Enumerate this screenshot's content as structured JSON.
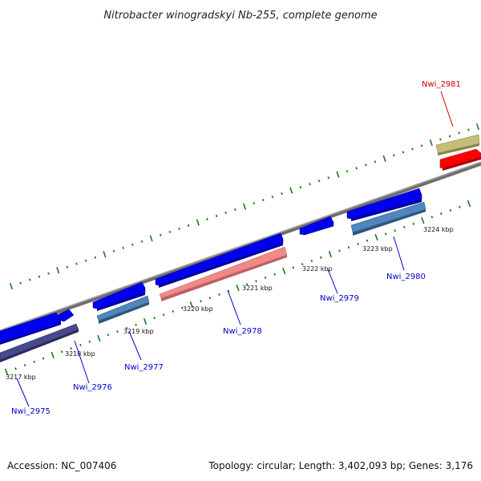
{
  "title": "Nitrobacter winogradskyi Nb-255, complete genome",
  "footer": {
    "accession": "Accession: NC_007406",
    "summary": "Topology: circular; Length: 3,402,093 bp; Genes: 3,176"
  },
  "colors": {
    "backbone": "#808080",
    "tick_green": "#1a7a1a",
    "label_blue": "#0000cc",
    "label_red": "#cc0000",
    "gene_blue": "#0000ee",
    "gene_steelblue": "#4682b4",
    "gene_darkslate": "#3c3c82",
    "gene_salmon": "#f08080",
    "gene_red": "#ff0000",
    "gene_khaki": "#bdb76b"
  },
  "scale": {
    "unit": "kbp",
    "labels": [
      {
        "kbp": 3217,
        "text": "3217 kbp"
      },
      {
        "kbp": 3218,
        "text": "3218 kbp"
      },
      {
        "kbp": 3219,
        "text": "3219 kbp"
      },
      {
        "kbp": 3220,
        "text": "3220 kbp"
      },
      {
        "kbp": 3221,
        "text": "3221 kbp"
      },
      {
        "kbp": 3222,
        "text": "3222 kbp"
      },
      {
        "kbp": 3223,
        "text": "3223 kbp"
      },
      {
        "kbp": 3224,
        "text": "3224 kbp"
      }
    ]
  },
  "genes": [
    {
      "id": "Nwi_2975",
      "label": "Nwi_2975",
      "label_color": "label_red_none"
    },
    {
      "id": "Nwi_2976",
      "label": "Nwi_2976"
    },
    {
      "id": "Nwi_2977",
      "label": "Nwi_2977"
    },
    {
      "id": "Nwi_2978",
      "label": "Nwi_2978"
    },
    {
      "id": "Nwi_2979",
      "label": "Nwi_2979"
    },
    {
      "id": "Nwi_2980",
      "label": "Nwi_2980"
    },
    {
      "id": "Nwi_2981",
      "label": "Nwi_2981"
    }
  ]
}
